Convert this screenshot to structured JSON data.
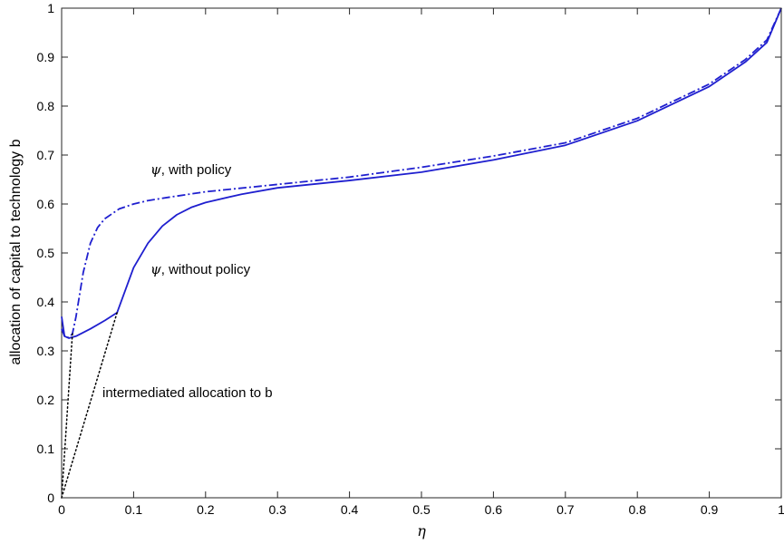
{
  "chart_data": {
    "type": "line",
    "xlabel": "η",
    "ylabel": "allocation of capital to technology b",
    "xlim": [
      0,
      1
    ],
    "ylim": [
      0,
      1
    ],
    "xticks": [
      "0",
      "0.1",
      "0.2",
      "0.3",
      "0.4",
      "0.5",
      "0.6",
      "0.7",
      "0.8",
      "0.9",
      "1"
    ],
    "yticks": [
      "0",
      "0.1",
      "0.2",
      "0.3",
      "0.4",
      "0.5",
      "0.6",
      "0.7",
      "0.8",
      "0.9",
      "1"
    ],
    "grid": false,
    "series": [
      {
        "name": "ψ, without policy",
        "style": "solid",
        "color": "#1f1fcf",
        "x": [
          0.0,
          0.004,
          0.01,
          0.02,
          0.04,
          0.06,
          0.077,
          0.09,
          0.1,
          0.12,
          0.14,
          0.16,
          0.18,
          0.2,
          0.25,
          0.3,
          0.4,
          0.5,
          0.6,
          0.7,
          0.8,
          0.9,
          0.95,
          0.98,
          1.0
        ],
        "y": [
          0.37,
          0.33,
          0.326,
          0.33,
          0.345,
          0.362,
          0.378,
          0.43,
          0.47,
          0.52,
          0.555,
          0.578,
          0.593,
          0.603,
          0.62,
          0.633,
          0.648,
          0.665,
          0.69,
          0.72,
          0.77,
          0.84,
          0.89,
          0.93,
          1.0
        ]
      },
      {
        "name": "ψ, with policy",
        "style": "dashdot",
        "color": "#1f1fcf",
        "x": [
          0.0,
          0.004,
          0.01,
          0.015,
          0.02,
          0.03,
          0.04,
          0.05,
          0.06,
          0.08,
          0.1,
          0.12,
          0.15,
          0.2,
          0.3,
          0.4,
          0.5,
          0.6,
          0.7,
          0.8,
          0.9,
          0.95,
          0.98,
          1.0
        ],
        "y": [
          0.345,
          0.33,
          0.327,
          0.335,
          0.37,
          0.46,
          0.52,
          0.552,
          0.57,
          0.59,
          0.6,
          0.607,
          0.614,
          0.625,
          0.64,
          0.655,
          0.675,
          0.698,
          0.725,
          0.775,
          0.845,
          0.895,
          0.935,
          1.0
        ]
      },
      {
        "name": "intermediated allocation to b",
        "style": "dotted",
        "color": "#000000",
        "x": [
          0.0,
          0.077
        ],
        "y": [
          0.0,
          0.378
        ]
      },
      {
        "name": "intermediated allocation to b",
        "style": "dotted",
        "color": "#000000",
        "x": [
          0.0,
          0.015
        ],
        "y": [
          0.0,
          0.335
        ]
      }
    ],
    "annotations": [
      {
        "symbol": "ψ",
        "text": ", with policy"
      },
      {
        "symbol": "ψ",
        "text": ", without policy"
      },
      {
        "symbol": "",
        "text": "intermediated allocation to b"
      }
    ]
  }
}
